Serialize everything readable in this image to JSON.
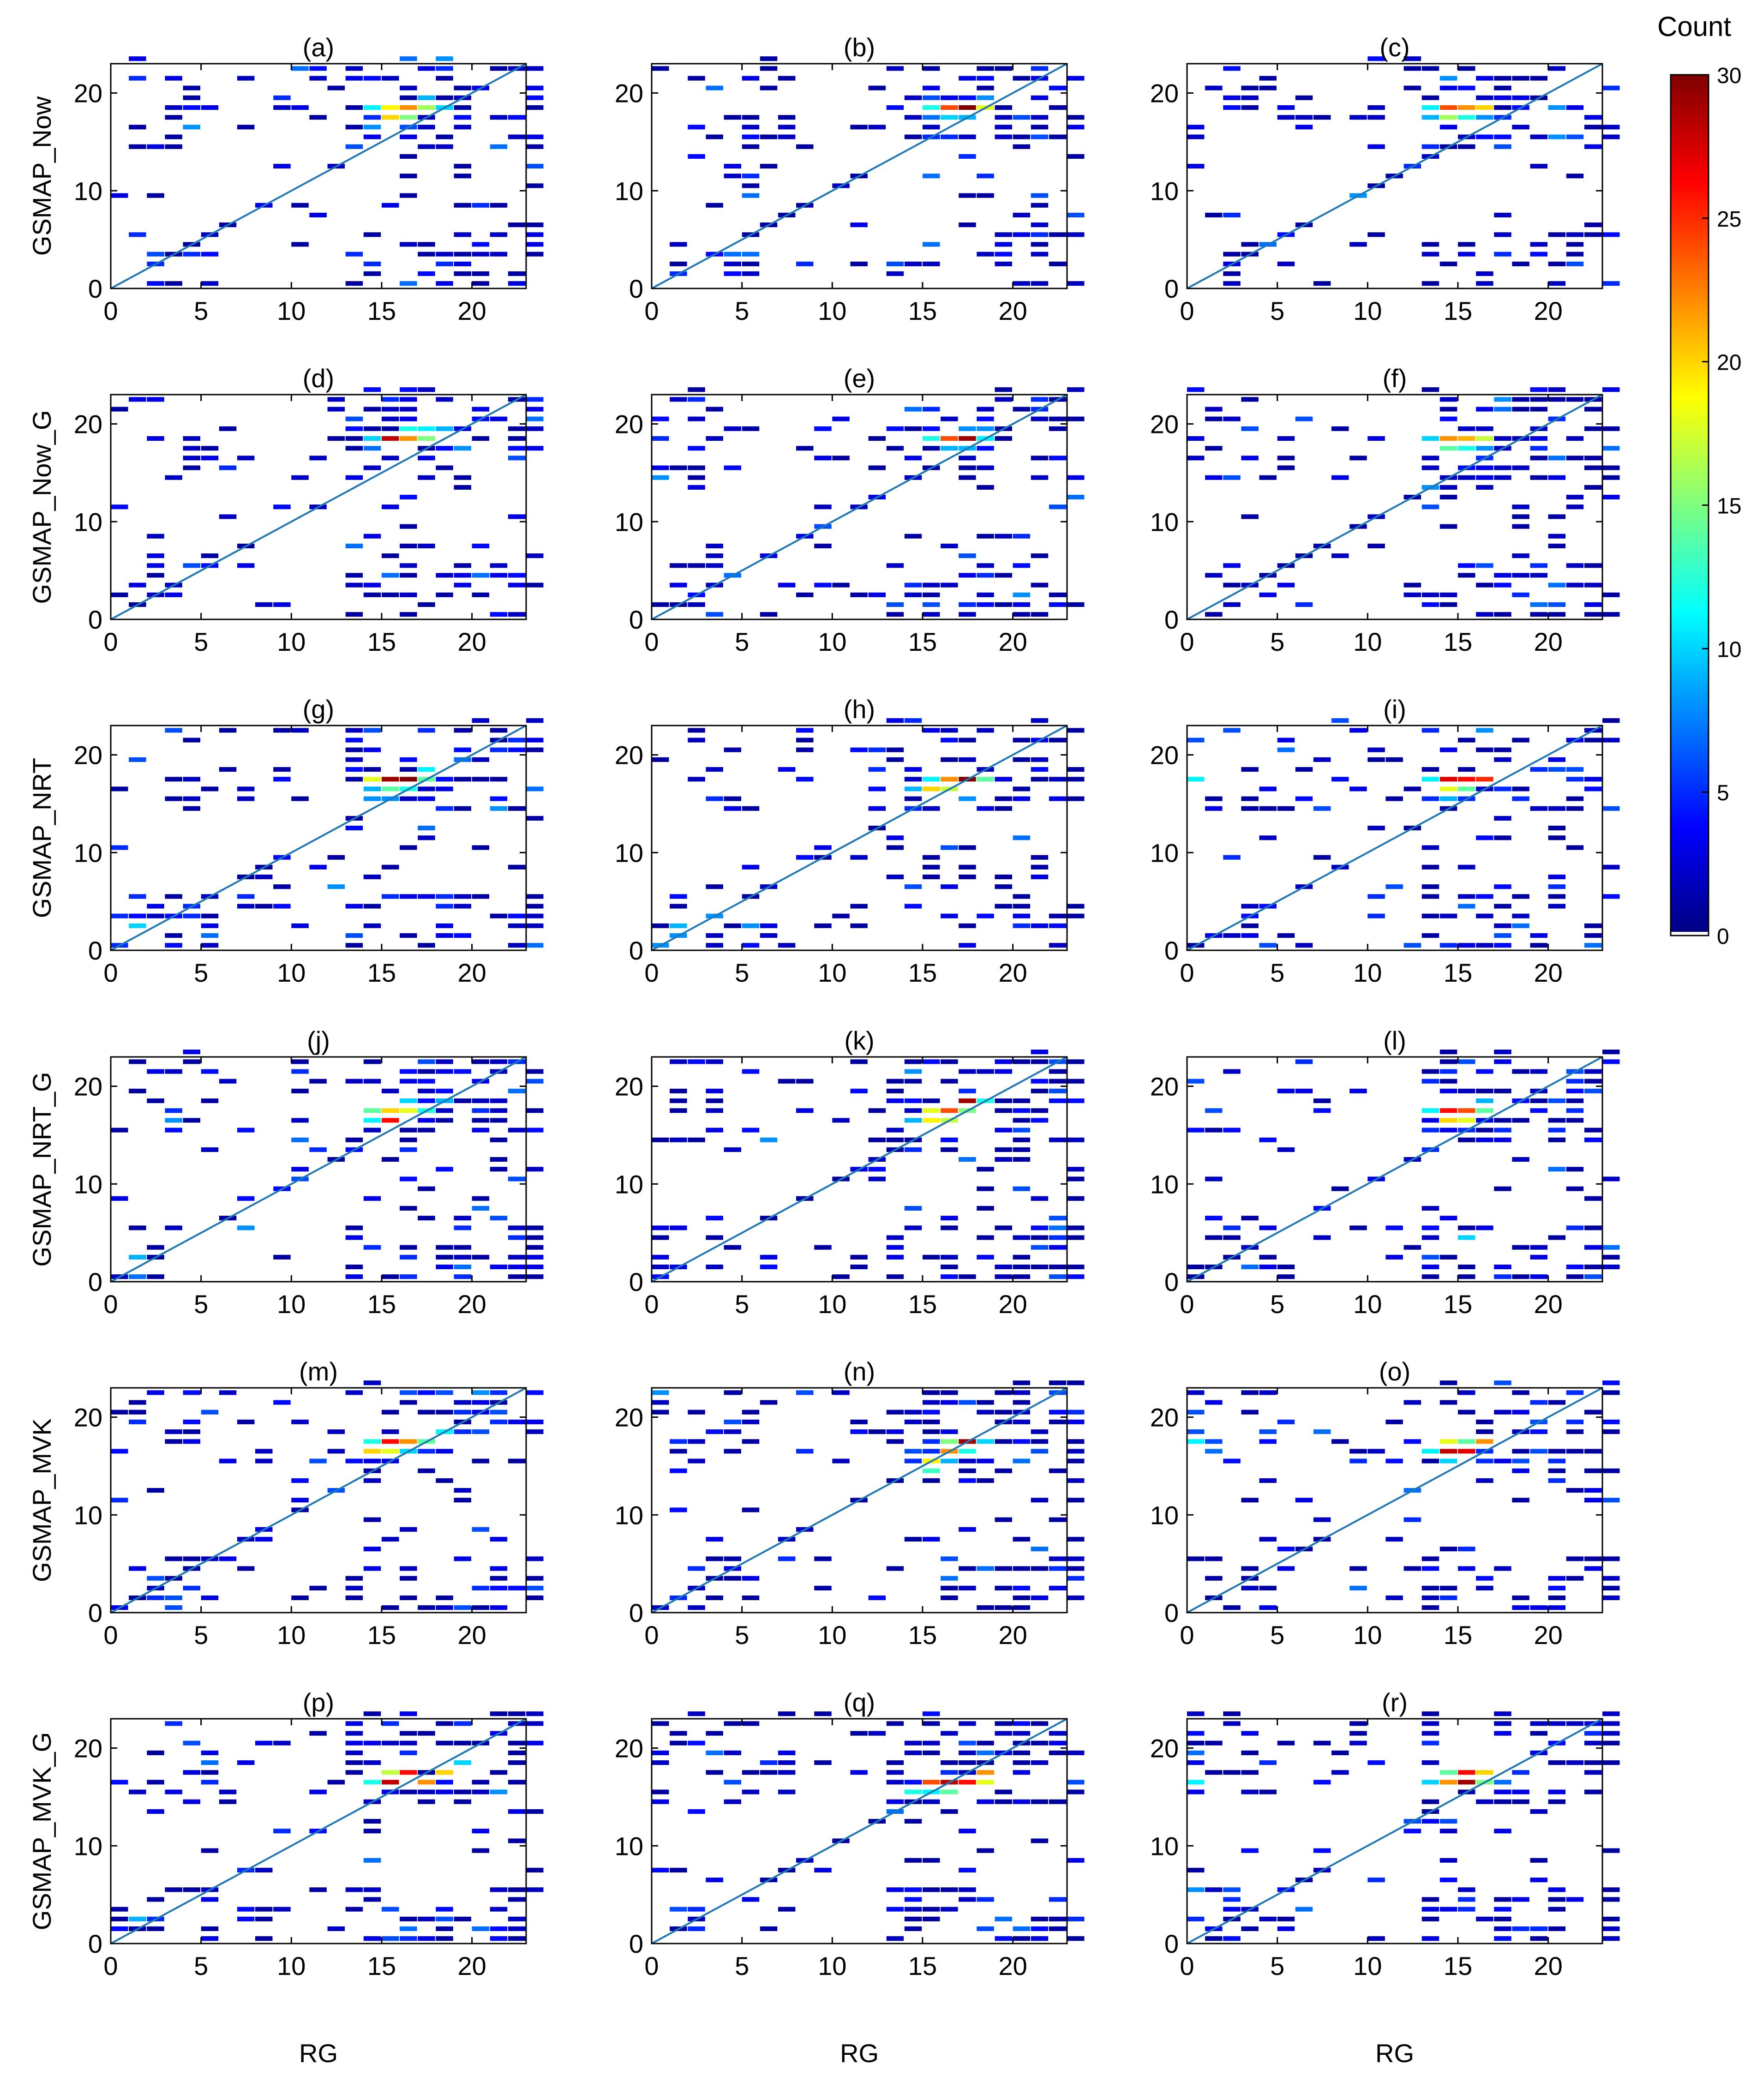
{
  "figure": {
    "row_labels": [
      "GSMAP_Now",
      "GSMAP_Now_G",
      "GSMAP_NRT",
      "GSMAP_NRT_G",
      "GSMAP_MVK",
      "GSMAP_MVK_G"
    ],
    "column_xlabel": "RG",
    "colorbar": {
      "title": "Count",
      "min": 0,
      "max": 30,
      "ticks": [
        0,
        5,
        10,
        15,
        20,
        25,
        30
      ],
      "colormap": "jet",
      "colors": [
        "#00007f",
        "#0000ff",
        "#007fff",
        "#00ffff",
        "#7fff7f",
        "#ffff00",
        "#ff7f00",
        "#ff0000",
        "#7f0000"
      ]
    }
  },
  "chart_data": [
    {
      "panel": "(a)",
      "type": "heatmap",
      "ylabel": "GSMAP_Now",
      "xlabel": "",
      "xlim": [
        0,
        23
      ],
      "ylim": [
        0,
        23
      ],
      "xticks": [
        0,
        5,
        10,
        15,
        20
      ],
      "yticks": [
        0,
        10,
        20
      ],
      "diagonal": "y=x",
      "hot_cells": [
        [
          15,
          18,
          19
        ],
        [
          16,
          18,
          22
        ],
        [
          17,
          18,
          16
        ],
        [
          15,
          17,
          20
        ],
        [
          16,
          17,
          15
        ],
        [
          14,
          18,
          11
        ],
        [
          17,
          19,
          9
        ],
        [
          18,
          18,
          10
        ],
        [
          14,
          16,
          8
        ]
      ]
    },
    {
      "panel": "(b)",
      "type": "heatmap",
      "ylabel": "",
      "xlabel": "",
      "xlim": [
        0,
        23
      ],
      "ylim": [
        0,
        23
      ],
      "xticks": [
        0,
        5,
        10,
        15,
        20
      ],
      "yticks": [
        0,
        10,
        20
      ],
      "diagonal": "y=x",
      "hot_cells": [
        [
          17,
          18,
          30
        ],
        [
          16,
          18,
          24
        ],
        [
          18,
          18,
          18
        ],
        [
          15,
          18,
          12
        ],
        [
          16,
          17,
          10
        ],
        [
          17,
          17,
          9
        ],
        [
          18,
          19,
          8
        ],
        [
          15,
          17,
          7
        ]
      ]
    },
    {
      "panel": "(c)",
      "type": "heatmap",
      "ylabel": "",
      "xlabel": "",
      "xlim": [
        0,
        23
      ],
      "ylim": [
        0,
        23
      ],
      "xticks": [
        0,
        5,
        10,
        15,
        20
      ],
      "yticks": [
        0,
        10,
        20
      ],
      "diagonal": "y=x",
      "hot_cells": [
        [
          14,
          18,
          24
        ],
        [
          15,
          18,
          22
        ],
        [
          16,
          18,
          20
        ],
        [
          14,
          17,
          16
        ],
        [
          15,
          17,
          12
        ],
        [
          13,
          18,
          11
        ],
        [
          13,
          17,
          9
        ],
        [
          16,
          17,
          8
        ]
      ]
    },
    {
      "panel": "(d)",
      "type": "heatmap",
      "ylabel": "GSMAP_Now_G",
      "xlabel": "",
      "xlim": [
        0,
        23
      ],
      "ylim": [
        0,
        23
      ],
      "xticks": [
        0,
        5,
        10,
        15,
        20
      ],
      "yticks": [
        0,
        10,
        20
      ],
      "diagonal": "y=x",
      "hot_cells": [
        [
          15,
          18,
          28
        ],
        [
          16,
          18,
          22
        ],
        [
          17,
          18,
          15
        ],
        [
          16,
          19,
          12
        ],
        [
          14,
          18,
          10
        ],
        [
          18,
          19,
          9
        ],
        [
          17,
          19,
          11
        ],
        [
          14,
          17,
          7
        ]
      ]
    },
    {
      "panel": "(e)",
      "type": "heatmap",
      "ylabel": "",
      "xlabel": "",
      "xlim": [
        0,
        23
      ],
      "ylim": [
        0,
        23
      ],
      "xticks": [
        0,
        5,
        10,
        15,
        20
      ],
      "yticks": [
        0,
        10,
        20
      ],
      "diagonal": "y=x",
      "hot_cells": [
        [
          17,
          18,
          29
        ],
        [
          16,
          18,
          24
        ],
        [
          15,
          18,
          12
        ],
        [
          18,
          18,
          11
        ],
        [
          16,
          17,
          9
        ],
        [
          18,
          19,
          8
        ],
        [
          17,
          17,
          9
        ]
      ]
    },
    {
      "panel": "(f)",
      "type": "heatmap",
      "ylabel": "",
      "xlabel": "",
      "xlim": [
        0,
        23
      ],
      "ylim": [
        0,
        23
      ],
      "xticks": [
        0,
        5,
        10,
        15,
        20
      ],
      "yticks": [
        0,
        10,
        20
      ],
      "diagonal": "y=x",
      "hot_cells": [
        [
          14,
          18,
          22
        ],
        [
          15,
          18,
          21
        ],
        [
          16,
          18,
          17
        ],
        [
          14,
          17,
          14
        ],
        [
          15,
          17,
          12
        ],
        [
          13,
          18,
          10
        ],
        [
          16,
          17,
          8
        ]
      ]
    },
    {
      "panel": "(g)",
      "type": "heatmap",
      "ylabel": "GSMAP_NRT",
      "xlabel": "",
      "xlim": [
        0,
        23
      ],
      "ylim": [
        0,
        23
      ],
      "xticks": [
        0,
        5,
        10,
        15,
        20
      ],
      "yticks": [
        0,
        10,
        20
      ],
      "diagonal": "y=x",
      "hot_cells": [
        [
          15,
          17,
          29
        ],
        [
          16,
          17,
          30
        ],
        [
          14,
          17,
          18
        ],
        [
          17,
          17,
          14
        ],
        [
          15,
          16,
          14
        ],
        [
          16,
          16,
          12
        ],
        [
          14,
          16,
          9
        ],
        [
          1,
          2,
          10
        ],
        [
          17,
          18,
          11
        ],
        [
          15,
          15,
          8
        ]
      ]
    },
    {
      "panel": "(h)",
      "type": "heatmap",
      "ylabel": "",
      "xlabel": "",
      "xlim": [
        0,
        23
      ],
      "ylim": [
        0,
        23
      ],
      "xticks": [
        0,
        5,
        10,
        15,
        20
      ],
      "yticks": [
        0,
        10,
        20
      ],
      "diagonal": "y=x",
      "hot_cells": [
        [
          17,
          17,
          30
        ],
        [
          16,
          17,
          22
        ],
        [
          15,
          16,
          20
        ],
        [
          16,
          16,
          17
        ],
        [
          18,
          17,
          14
        ],
        [
          15,
          17,
          11
        ],
        [
          14,
          16,
          9
        ],
        [
          1,
          2,
          9
        ]
      ]
    },
    {
      "panel": "(i)",
      "type": "heatmap",
      "ylabel": "",
      "xlabel": "",
      "xlim": [
        0,
        23
      ],
      "ylim": [
        0,
        23
      ],
      "xticks": [
        0,
        5,
        10,
        15,
        20
      ],
      "yticks": [
        0,
        10,
        20
      ],
      "diagonal": "y=x",
      "hot_cells": [
        [
          14,
          17,
          27
        ],
        [
          15,
          17,
          26
        ],
        [
          16,
          17,
          25
        ],
        [
          14,
          16,
          18
        ],
        [
          15,
          16,
          14
        ],
        [
          13,
          17,
          11
        ],
        [
          0,
          17,
          11
        ],
        [
          14,
          15,
          9
        ]
      ]
    },
    {
      "panel": "(j)",
      "type": "heatmap",
      "ylabel": "GSMAP_NRT_G",
      "xlabel": "",
      "xlim": [
        0,
        23
      ],
      "ylim": [
        0,
        23
      ],
      "xticks": [
        0,
        5,
        10,
        15,
        20
      ],
      "yticks": [
        0,
        10,
        20
      ],
      "diagonal": "y=x",
      "hot_cells": [
        [
          15,
          16,
          26
        ],
        [
          15,
          17,
          20
        ],
        [
          16,
          17,
          18
        ],
        [
          14,
          17,
          14
        ],
        [
          17,
          17,
          12
        ],
        [
          14,
          16,
          11
        ],
        [
          16,
          18,
          10
        ],
        [
          18,
          18,
          9
        ],
        [
          1,
          2,
          9
        ]
      ]
    },
    {
      "panel": "(k)",
      "type": "heatmap",
      "ylabel": "",
      "xlabel": "",
      "xlim": [
        0,
        23
      ],
      "ylim": [
        0,
        23
      ],
      "xticks": [
        0,
        5,
        10,
        15,
        20
      ],
      "yticks": [
        0,
        10,
        20
      ],
      "diagonal": "y=x",
      "hot_cells": [
        [
          17,
          18,
          29
        ],
        [
          16,
          17,
          24
        ],
        [
          15,
          17,
          18
        ],
        [
          15,
          16,
          19
        ],
        [
          16,
          16,
          17
        ],
        [
          17,
          17,
          15
        ],
        [
          18,
          18,
          12
        ],
        [
          14,
          16,
          9
        ]
      ]
    },
    {
      "panel": "(l)",
      "type": "heatmap",
      "ylabel": "",
      "xlabel": "",
      "xlim": [
        0,
        23
      ],
      "ylim": [
        0,
        23
      ],
      "xticks": [
        0,
        5,
        10,
        15,
        20
      ],
      "yticks": [
        0,
        10,
        20
      ],
      "diagonal": "y=x",
      "hot_cells": [
        [
          14,
          17,
          26
        ],
        [
          15,
          17,
          24
        ],
        [
          14,
          16,
          20
        ],
        [
          15,
          16,
          18
        ],
        [
          16,
          17,
          14
        ],
        [
          13,
          17,
          11
        ],
        [
          15,
          4,
          10
        ],
        [
          16,
          18,
          9
        ]
      ]
    },
    {
      "panel": "(m)",
      "type": "heatmap",
      "ylabel": "GSMAP_MVK",
      "xlabel": "",
      "xlim": [
        0,
        23
      ],
      "ylim": [
        0,
        23
      ],
      "xticks": [
        0,
        5,
        10,
        15,
        20
      ],
      "yticks": [
        0,
        10,
        20
      ],
      "diagonal": "y=x",
      "hot_cells": [
        [
          15,
          17,
          26
        ],
        [
          16,
          17,
          22
        ],
        [
          14,
          16,
          20
        ],
        [
          15,
          16,
          18
        ],
        [
          17,
          17,
          14
        ],
        [
          14,
          17,
          12
        ],
        [
          18,
          18,
          11
        ],
        [
          16,
          16,
          10
        ]
      ]
    },
    {
      "panel": "(n)",
      "type": "heatmap",
      "ylabel": "",
      "xlabel": "",
      "xlim": [
        0,
        23
      ],
      "ylim": [
        0,
        23
      ],
      "xticks": [
        0,
        5,
        10,
        15,
        20
      ],
      "yticks": [
        0,
        10,
        20
      ],
      "diagonal": "y=x",
      "hot_cells": [
        [
          17,
          17,
          29
        ],
        [
          16,
          16,
          22
        ],
        [
          15,
          15,
          19
        ],
        [
          16,
          17,
          15
        ],
        [
          17,
          16,
          12
        ],
        [
          15,
          14,
          13
        ],
        [
          18,
          17,
          10
        ],
        [
          16,
          15,
          9
        ]
      ]
    },
    {
      "panel": "(o)",
      "type": "heatmap",
      "ylabel": "",
      "xlabel": "",
      "xlim": [
        0,
        23
      ],
      "ylim": [
        0,
        23
      ],
      "xticks": [
        0,
        5,
        10,
        15,
        20
      ],
      "yticks": [
        0,
        10,
        20
      ],
      "diagonal": "y=x",
      "hot_cells": [
        [
          14,
          16,
          28
        ],
        [
          15,
          16,
          27
        ],
        [
          16,
          17,
          22
        ],
        [
          14,
          17,
          18
        ],
        [
          15,
          17,
          14
        ],
        [
          13,
          16,
          11
        ],
        [
          0,
          17,
          11
        ],
        [
          14,
          15,
          10
        ]
      ]
    },
    {
      "panel": "(p)",
      "type": "heatmap",
      "ylabel": "GSMAP_MVK_G",
      "xlabel": "",
      "xlim": [
        0,
        23
      ],
      "ylim": [
        0,
        23
      ],
      "xticks": [
        0,
        5,
        10,
        15,
        20
      ],
      "yticks": [
        0,
        10,
        20
      ],
      "diagonal": "y=x",
      "hot_cells": [
        [
          15,
          16,
          28
        ],
        [
          16,
          17,
          26
        ],
        [
          17,
          16,
          22
        ],
        [
          18,
          17,
          20
        ],
        [
          15,
          17,
          17
        ],
        [
          14,
          16,
          12
        ],
        [
          19,
          18,
          10
        ],
        [
          1,
          2,
          9
        ]
      ]
    },
    {
      "panel": "(q)",
      "type": "heatmap",
      "ylabel": "",
      "xlabel": "",
      "xlim": [
        0,
        23
      ],
      "ylim": [
        0,
        23
      ],
      "xticks": [
        0,
        5,
        10,
        15,
        20
      ],
      "yticks": [
        0,
        10,
        20
      ],
      "diagonal": "y=x",
      "hot_cells": [
        [
          16,
          16,
          28
        ],
        [
          17,
          16,
          26
        ],
        [
          15,
          16,
          24
        ],
        [
          18,
          17,
          22
        ],
        [
          16,
          15,
          14
        ],
        [
          14,
          15,
          12
        ],
        [
          15,
          15,
          11
        ],
        [
          18,
          16,
          18
        ]
      ]
    },
    {
      "panel": "(r)",
      "type": "heatmap",
      "ylabel": "",
      "xlabel": "",
      "xlim": [
        0,
        23
      ],
      "ylim": [
        0,
        23
      ],
      "xticks": [
        0,
        5,
        10,
        15,
        20
      ],
      "yticks": [
        0,
        10,
        20
      ],
      "diagonal": "y=x",
      "hot_cells": [
        [
          15,
          16,
          29
        ],
        [
          15,
          17,
          26
        ],
        [
          14,
          16,
          22
        ],
        [
          16,
          17,
          20
        ],
        [
          14,
          17,
          14
        ],
        [
          16,
          16,
          15
        ],
        [
          0,
          16,
          11
        ],
        [
          13,
          16,
          10
        ]
      ]
    }
  ]
}
